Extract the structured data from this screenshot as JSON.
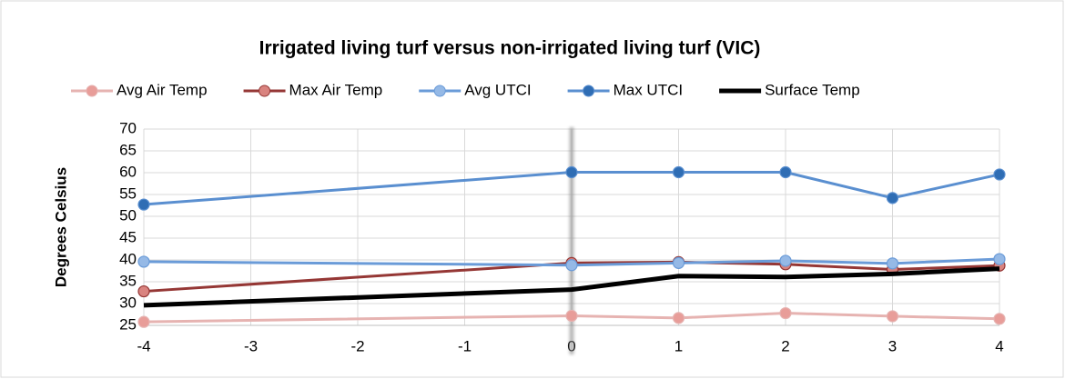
{
  "chart_data": {
    "type": "line",
    "title": "Irrigated living turf versus non-irrigated living turf (VIC)",
    "y_label": "Degrees Celsius",
    "x": [
      -4,
      0,
      1,
      2,
      3,
      4
    ],
    "xlim": [
      -4,
      4
    ],
    "xticks": [
      -4,
      -3,
      -2,
      -1,
      0,
      1,
      2,
      3,
      4
    ],
    "ylim": [
      25,
      70
    ],
    "yticks": [
      25,
      30,
      35,
      40,
      45,
      50,
      55,
      60,
      65,
      70
    ],
    "grid": true,
    "legend": "top",
    "series": [
      {
        "name": "Avg Air Temp",
        "color": "#e6b3b1",
        "marker_color": "#e89d99",
        "marker": true,
        "values": [
          25.8,
          27.2,
          26.7,
          27.8,
          27.1,
          26.5
        ]
      },
      {
        "name": "Max Air Temp",
        "color": "#953735",
        "marker_color": "#d9837f",
        "marker": true,
        "values": [
          32.8,
          39.3,
          39.5,
          39.0,
          37.8,
          38.7
        ]
      },
      {
        "name": "Avg UTCI",
        "color": "#6a9bd8",
        "marker_color": "#95b9e6",
        "marker": true,
        "values": [
          39.6,
          38.8,
          39.3,
          39.8,
          39.2,
          40.2
        ]
      },
      {
        "name": "Max UTCI",
        "color": "#5a8fd0",
        "marker_color": "#2f6db4",
        "marker": true,
        "values": [
          52.7,
          60.1,
          60.1,
          60.1,
          54.2,
          59.6
        ]
      },
      {
        "name": "Surface Temp",
        "color": "#000000",
        "marker": false,
        "values": [
          29.6,
          33.2,
          36.3,
          36.1,
          36.8,
          38.0
        ]
      }
    ]
  }
}
